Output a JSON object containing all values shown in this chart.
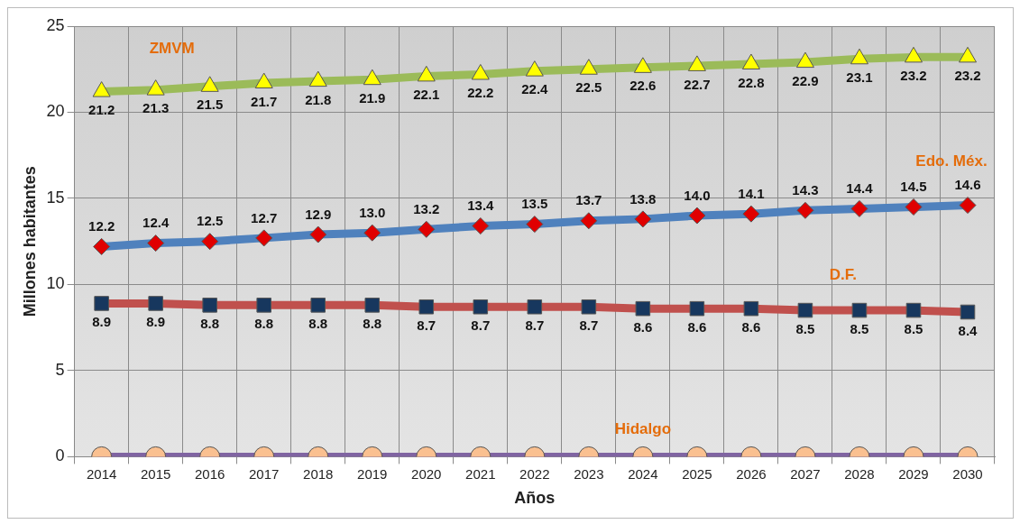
{
  "chart_data": {
    "type": "line",
    "xlabel": "Años",
    "ylabel": "Millones habitantes",
    "categories": [
      "2014",
      "2015",
      "2016",
      "2017",
      "2018",
      "2019",
      "2020",
      "2021",
      "2022",
      "2023",
      "2024",
      "2025",
      "2026",
      "2027",
      "2028",
      "2029",
      "2030"
    ],
    "series": [
      {
        "name": "ZMVM",
        "color": "#9bbb59",
        "marker": "triangle",
        "values": [
          21.2,
          21.3,
          21.5,
          21.7,
          21.8,
          21.9,
          22.1,
          22.2,
          22.4,
          22.5,
          22.6,
          22.7,
          22.8,
          22.9,
          23.1,
          23.2,
          23.2
        ],
        "value_labels": [
          "21.2",
          "21.3",
          "21.5",
          "21.7",
          "21.8",
          "21.9",
          "22.1",
          "22.2",
          "22.4",
          "22.5",
          "22.6",
          "22.7",
          "22.8",
          "22.9",
          "23.1",
          "23.2",
          "23.2"
        ]
      },
      {
        "name": "Edo. Méx.",
        "color": "#4f81bd",
        "marker": "diamond",
        "values": [
          12.2,
          12.4,
          12.5,
          12.7,
          12.9,
          13.0,
          13.2,
          13.4,
          13.5,
          13.7,
          13.8,
          14.0,
          14.1,
          14.3,
          14.4,
          14.5,
          14.6
        ],
        "value_labels": [
          "12.2",
          "12.4",
          "12.5",
          "12.7",
          "12.9",
          "13.0",
          "13.2",
          "13.4",
          "13.5",
          "13.7",
          "13.8",
          "14.0",
          "14.1",
          "14.3",
          "14.4",
          "14.5",
          "14.6"
        ]
      },
      {
        "name": "D.F.",
        "color": "#c0504d",
        "marker": "square",
        "values": [
          8.9,
          8.9,
          8.8,
          8.8,
          8.8,
          8.8,
          8.7,
          8.7,
          8.7,
          8.7,
          8.6,
          8.6,
          8.6,
          8.5,
          8.5,
          8.5,
          8.4
        ],
        "value_labels": [
          "8.9",
          "8.9",
          "8.8",
          "8.8",
          "8.8",
          "8.8",
          "8.7",
          "8.7",
          "8.7",
          "8.7",
          "8.6",
          "8.6",
          "8.6",
          "8.5",
          "8.5",
          "8.5",
          "8.4"
        ]
      },
      {
        "name": "Hidalgo",
        "color": "#8064a2",
        "marker": "circle",
        "values": [
          0,
          0,
          0,
          0,
          0,
          0,
          0,
          0,
          0,
          0,
          0,
          0,
          0,
          0,
          0,
          0,
          0
        ]
      }
    ],
    "ylim": [
      0,
      25
    ],
    "yticks": [
      0,
      5,
      10,
      15,
      20,
      25
    ],
    "grid": true,
    "legend": false
  }
}
